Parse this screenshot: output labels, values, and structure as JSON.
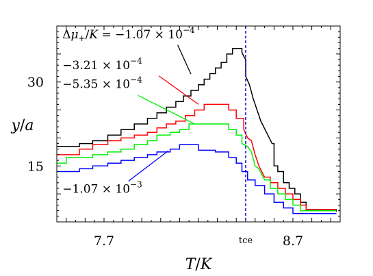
{
  "chart_data": {
    "type": "line",
    "step": true,
    "xlabel": "T/K",
    "ylabel": "y/a",
    "xlim": [
      7.45,
      8.95
    ],
    "ylim": [
      5,
      40
    ],
    "x_ticks": [
      {
        "value": 7.7,
        "label": "7.7"
      },
      {
        "value": 8.7,
        "label": "8.7"
      }
    ],
    "y_ticks": [
      {
        "value": 15,
        "label": "15"
      },
      {
        "value": 30,
        "label": "30"
      }
    ],
    "vline": {
      "x": 8.45,
      "label": "tce",
      "color": "#0000cc",
      "style": "dashed"
    },
    "series": [
      {
        "name": "Δμ+/K = −1.07 × 10⁻⁴",
        "color": "#000000",
        "points": [
          [
            7.45,
            18.5
          ],
          [
            7.57,
            18.5
          ],
          [
            7.57,
            19.0
          ],
          [
            7.64,
            19.0
          ],
          [
            7.64,
            19.5
          ],
          [
            7.72,
            19.5
          ],
          [
            7.72,
            20.5
          ],
          [
            7.79,
            20.5
          ],
          [
            7.79,
            21.5
          ],
          [
            7.86,
            21.5
          ],
          [
            7.86,
            22.5
          ],
          [
            7.93,
            22.5
          ],
          [
            7.93,
            23.5
          ],
          [
            7.98,
            23.5
          ],
          [
            7.98,
            24.5
          ],
          [
            8.03,
            24.5
          ],
          [
            8.03,
            25.5
          ],
          [
            8.08,
            25.5
          ],
          [
            8.08,
            26.5
          ],
          [
            8.12,
            26.5
          ],
          [
            8.12,
            27.5
          ],
          [
            8.16,
            27.5
          ],
          [
            8.16,
            28.5
          ],
          [
            8.2,
            28.5
          ],
          [
            8.2,
            29.5
          ],
          [
            8.23,
            29.5
          ],
          [
            8.23,
            30.5
          ],
          [
            8.26,
            30.5
          ],
          [
            8.26,
            31.5
          ],
          [
            8.29,
            31.5
          ],
          [
            8.29,
            32.5
          ],
          [
            8.32,
            32.5
          ],
          [
            8.32,
            33.5
          ],
          [
            8.35,
            33.5
          ],
          [
            8.35,
            35.0
          ],
          [
            8.38,
            35.0
          ],
          [
            8.38,
            36.0
          ],
          [
            8.43,
            36.0
          ],
          [
            8.43,
            35.3
          ],
          [
            8.44,
            34.6
          ],
          [
            8.45,
            34.0
          ],
          [
            8.45,
            31.0
          ],
          [
            8.47,
            29.5
          ],
          [
            8.49,
            27.0
          ],
          [
            8.51,
            25.0
          ],
          [
            8.53,
            23.0
          ],
          [
            8.56,
            21.0
          ],
          [
            8.59,
            19.0
          ],
          [
            8.6,
            19.0
          ],
          [
            8.6,
            15.0
          ],
          [
            8.62,
            15.0
          ],
          [
            8.62,
            14.0
          ],
          [
            8.65,
            14.0
          ],
          [
            8.65,
            12.0
          ],
          [
            8.68,
            12.0
          ],
          [
            8.68,
            11.0
          ],
          [
            8.71,
            11.0
          ],
          [
            8.71,
            10.0
          ],
          [
            8.74,
            10.0
          ],
          [
            8.74,
            8.5
          ],
          [
            8.77,
            8.5
          ],
          [
            8.77,
            7.2
          ],
          [
            8.93,
            7.2
          ],
          [
            8.93,
            6.8
          ]
        ]
      },
      {
        "name": "−3.21 × 10⁻⁴",
        "color": "#ff0000",
        "points": [
          [
            7.45,
            17.0
          ],
          [
            7.57,
            17.0
          ],
          [
            7.57,
            18.0
          ],
          [
            7.64,
            18.0
          ],
          [
            7.64,
            18.8
          ],
          [
            7.72,
            18.8
          ],
          [
            7.72,
            19.5
          ],
          [
            7.79,
            19.5
          ],
          [
            7.79,
            20.0
          ],
          [
            7.86,
            20.0
          ],
          [
            7.86,
            20.5
          ],
          [
            7.93,
            20.5
          ],
          [
            7.93,
            21.0
          ],
          [
            7.98,
            21.0
          ],
          [
            7.98,
            21.8
          ],
          [
            8.03,
            21.8
          ],
          [
            8.03,
            22.5
          ],
          [
            8.08,
            22.5
          ],
          [
            8.08,
            23.0
          ],
          [
            8.13,
            23.0
          ],
          [
            8.13,
            24.0
          ],
          [
            8.18,
            24.0
          ],
          [
            8.18,
            25.0
          ],
          [
            8.23,
            25.0
          ],
          [
            8.23,
            26.0
          ],
          [
            8.36,
            26.0
          ],
          [
            8.36,
            25.0
          ],
          [
            8.4,
            25.0
          ],
          [
            8.4,
            23.5
          ],
          [
            8.44,
            23.5
          ],
          [
            8.44,
            21.5
          ],
          [
            8.46,
            20.0
          ],
          [
            8.48,
            19.5
          ],
          [
            8.5,
            17.0
          ],
          [
            8.52,
            15.0
          ],
          [
            8.55,
            13.0
          ],
          [
            8.58,
            13.0
          ],
          [
            8.58,
            12.0
          ],
          [
            8.62,
            12.0
          ],
          [
            8.62,
            11.0
          ],
          [
            8.66,
            11.0
          ],
          [
            8.66,
            10.0
          ],
          [
            8.7,
            10.0
          ],
          [
            8.7,
            9.0
          ],
          [
            8.74,
            9.0
          ],
          [
            8.74,
            8.0
          ],
          [
            8.77,
            8.0
          ],
          [
            8.77,
            7.2
          ],
          [
            8.93,
            7.2
          ]
        ]
      },
      {
        "name": "−5.35 × 10⁻⁴",
        "color": "#00ee00",
        "points": [
          [
            7.45,
            15.5
          ],
          [
            7.5,
            15.5
          ],
          [
            7.5,
            16.5
          ],
          [
            7.64,
            16.5
          ],
          [
            7.64,
            17.0
          ],
          [
            7.72,
            17.0
          ],
          [
            7.72,
            17.5
          ],
          [
            7.79,
            17.5
          ],
          [
            7.79,
            18.0
          ],
          [
            7.86,
            18.0
          ],
          [
            7.86,
            18.8
          ],
          [
            7.93,
            18.8
          ],
          [
            7.93,
            19.5
          ],
          [
            7.98,
            19.5
          ],
          [
            7.98,
            20.5
          ],
          [
            8.05,
            20.5
          ],
          [
            8.05,
            21.0
          ],
          [
            8.1,
            21.0
          ],
          [
            8.1,
            21.5
          ],
          [
            8.15,
            21.5
          ],
          [
            8.15,
            22.5
          ],
          [
            8.36,
            22.5
          ],
          [
            8.36,
            21.5
          ],
          [
            8.4,
            21.5
          ],
          [
            8.4,
            20.5
          ],
          [
            8.43,
            20.5
          ],
          [
            8.43,
            19.0
          ],
          [
            8.46,
            18.5
          ],
          [
            8.48,
            17.5
          ],
          [
            8.5,
            15.0
          ],
          [
            8.52,
            14.5
          ],
          [
            8.55,
            12.5
          ],
          [
            8.58,
            12.5
          ],
          [
            8.58,
            11.0
          ],
          [
            8.62,
            11.0
          ],
          [
            8.62,
            10.0
          ],
          [
            8.66,
            10.0
          ],
          [
            8.66,
            9.0
          ],
          [
            8.7,
            9.0
          ],
          [
            8.7,
            8.0
          ],
          [
            8.74,
            8.0
          ],
          [
            8.74,
            7.0
          ],
          [
            8.93,
            7.0
          ]
        ]
      },
      {
        "name": "−1.07 × 10⁻³",
        "color": "#0000ff",
        "points": [
          [
            7.45,
            14.0
          ],
          [
            7.57,
            14.0
          ],
          [
            7.57,
            14.5
          ],
          [
            7.64,
            14.5
          ],
          [
            7.64,
            15.0
          ],
          [
            7.72,
            15.0
          ],
          [
            7.72,
            15.5
          ],
          [
            7.79,
            15.5
          ],
          [
            7.79,
            16.0
          ],
          [
            7.86,
            16.0
          ],
          [
            7.86,
            16.5
          ],
          [
            7.93,
            16.5
          ],
          [
            7.93,
            17.0
          ],
          [
            7.98,
            17.0
          ],
          [
            7.98,
            17.5
          ],
          [
            8.05,
            17.5
          ],
          [
            8.05,
            18.0
          ],
          [
            8.1,
            18.0
          ],
          [
            8.1,
            18.8
          ],
          [
            8.2,
            18.8
          ],
          [
            8.2,
            17.8
          ],
          [
            8.29,
            17.8
          ],
          [
            8.29,
            17.5
          ],
          [
            8.36,
            17.5
          ],
          [
            8.36,
            16.5
          ],
          [
            8.4,
            16.5
          ],
          [
            8.4,
            15.5
          ],
          [
            8.43,
            15.5
          ],
          [
            8.43,
            14.0
          ],
          [
            8.46,
            14.0
          ],
          [
            8.46,
            12.5
          ],
          [
            8.5,
            12.5
          ],
          [
            8.5,
            11.5
          ],
          [
            8.55,
            11.5
          ],
          [
            8.55,
            10.0
          ],
          [
            8.6,
            10.0
          ],
          [
            8.6,
            8.5
          ],
          [
            8.65,
            8.5
          ],
          [
            8.65,
            7.5
          ],
          [
            8.7,
            7.5
          ],
          [
            8.7,
            6.5
          ],
          [
            8.93,
            6.5
          ]
        ]
      }
    ],
    "annotations": [
      {
        "series": 0,
        "label_parts": [
          "Δ",
          "μ",
          "+",
          "/",
          "K",
          " = −1.07 × 10",
          "−4"
        ],
        "text_x": 7.48,
        "text_y": 37.8,
        "arrow_from": [
          8.09,
          36.6
        ],
        "arrow_to": [
          8.16,
          31.4
        ]
      },
      {
        "series": 1,
        "label_parts": [
          "−3.21 × 10",
          "−4"
        ],
        "text_x": 7.48,
        "text_y": 32.3,
        "arrow_from": [
          7.99,
          31.1
        ],
        "arrow_to": [
          8.2,
          26.0
        ]
      },
      {
        "series": 2,
        "label_parts": [
          "−5.35 × 10",
          "−4"
        ],
        "text_x": 7.48,
        "text_y": 28.9,
        "arrow_from": [
          7.88,
          27.6
        ],
        "arrow_to": [
          8.18,
          22.5
        ]
      },
      {
        "series": 3,
        "label_parts": [
          "−1.07 × 10",
          "−3"
        ],
        "text_x": 7.48,
        "text_y": 10.2,
        "arrow_from": [
          7.83,
          12.3
        ],
        "arrow_to": [
          8.04,
          17.7
        ]
      }
    ]
  }
}
